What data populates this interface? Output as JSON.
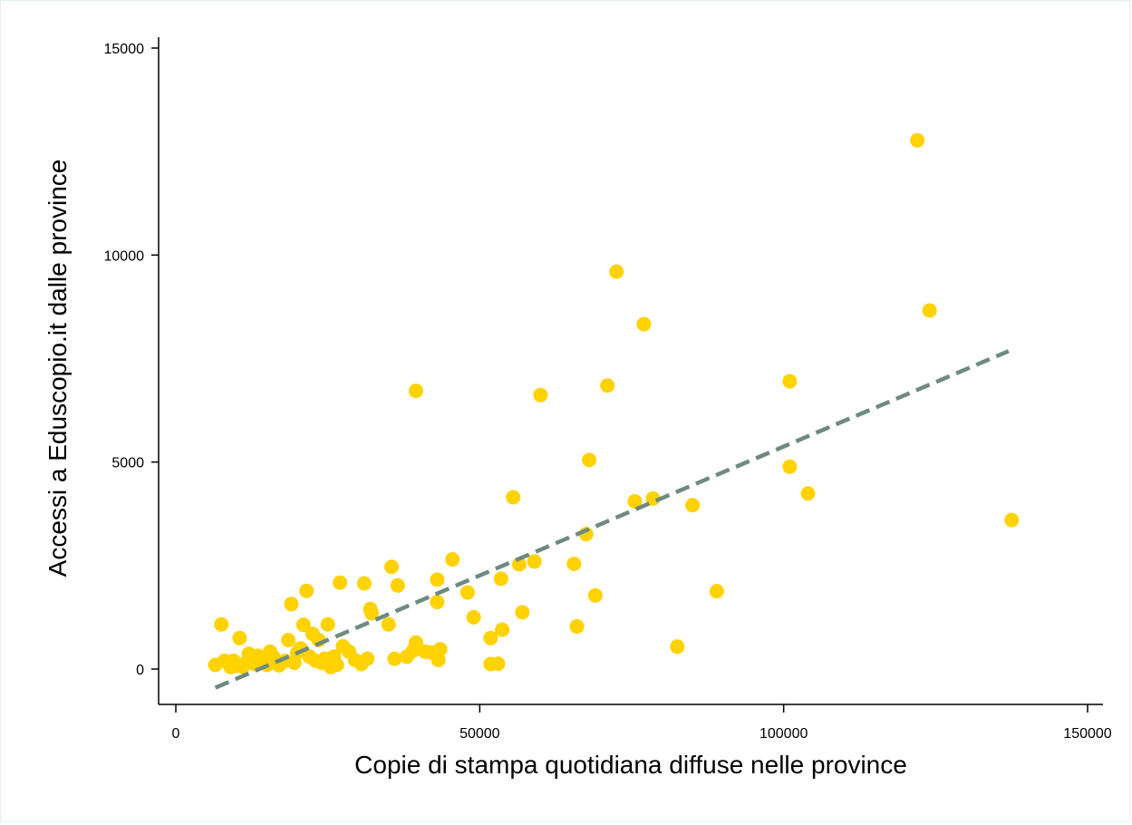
{
  "chart_data": {
    "type": "scatter",
    "xlabel": "Copie di stampa quotidiana diffuse nelle province",
    "ylabel": "Accessi a Eduscopio.it dalle province",
    "xlim": [
      0,
      150000
    ],
    "ylim": [
      0,
      15000
    ],
    "xticks": [
      "0",
      "50000",
      "100000",
      "150000"
    ],
    "yticks": [
      "0",
      "5000",
      "10000",
      "15000"
    ],
    "grid": false,
    "legend": "none",
    "marker_color": "#ffd200",
    "fit_color": "#6f8a80",
    "series": [
      {
        "values": [
          [
            6500,
            100
          ],
          [
            7500,
            1080
          ],
          [
            8000,
            200
          ],
          [
            9000,
            50
          ],
          [
            9500,
            200
          ],
          [
            10000,
            80
          ],
          [
            10500,
            750
          ],
          [
            11000,
            60
          ],
          [
            11500,
            150
          ],
          [
            12000,
            370
          ],
          [
            12500,
            250
          ],
          [
            13000,
            120
          ],
          [
            13500,
            320
          ],
          [
            14000,
            180
          ],
          [
            15000,
            100
          ],
          [
            15500,
            420
          ],
          [
            16000,
            300
          ],
          [
            17000,
            90
          ],
          [
            18000,
            200
          ],
          [
            18500,
            700
          ],
          [
            19000,
            1570
          ],
          [
            19500,
            150
          ],
          [
            20000,
            400
          ],
          [
            20500,
            500
          ],
          [
            21000,
            1070
          ],
          [
            21500,
            1890
          ],
          [
            22000,
            300
          ],
          [
            22500,
            850
          ],
          [
            23000,
            200
          ],
          [
            23500,
            700
          ],
          [
            24000,
            150
          ],
          [
            24500,
            250
          ],
          [
            25000,
            1080
          ],
          [
            25500,
            50
          ],
          [
            26000,
            300
          ],
          [
            26500,
            100
          ],
          [
            27000,
            2090
          ],
          [
            27500,
            550
          ],
          [
            28500,
            420
          ],
          [
            29500,
            220
          ],
          [
            30500,
            120
          ],
          [
            31000,
            2070
          ],
          [
            31500,
            250
          ],
          [
            32000,
            1450
          ],
          [
            32200,
            1350
          ],
          [
            35000,
            1080
          ],
          [
            35500,
            2470
          ],
          [
            36000,
            250
          ],
          [
            36500,
            2020
          ],
          [
            38000,
            300
          ],
          [
            39000,
            440
          ],
          [
            39500,
            6720
          ],
          [
            39500,
            640
          ],
          [
            41000,
            420
          ],
          [
            42000,
            400
          ],
          [
            43000,
            2160
          ],
          [
            43000,
            1620
          ],
          [
            43200,
            220
          ],
          [
            43500,
            480
          ],
          [
            45500,
            2650
          ],
          [
            48000,
            1850
          ],
          [
            49000,
            1250
          ],
          [
            51800,
            750
          ],
          [
            51800,
            120
          ],
          [
            53000,
            130
          ],
          [
            53500,
            2180
          ],
          [
            53700,
            950
          ],
          [
            55500,
            4150
          ],
          [
            56500,
            2530
          ],
          [
            57000,
            1370
          ],
          [
            59000,
            2600
          ],
          [
            60000,
            6620
          ],
          [
            65500,
            2540
          ],
          [
            66000,
            1030
          ],
          [
            67500,
            3260
          ],
          [
            68000,
            5050
          ],
          [
            69000,
            1780
          ],
          [
            71000,
            6850
          ],
          [
            72500,
            9600
          ],
          [
            75500,
            4050
          ],
          [
            77000,
            8330
          ],
          [
            78500,
            4120
          ],
          [
            82500,
            540
          ],
          [
            85000,
            3960
          ],
          [
            89000,
            1880
          ],
          [
            101000,
            6950
          ],
          [
            101000,
            4890
          ],
          [
            104000,
            4240
          ],
          [
            122000,
            12770
          ],
          [
            124000,
            8660
          ],
          [
            137500,
            3600
          ]
        ]
      }
    ],
    "fit_line": {
      "style": "dashed",
      "x": [
        6500,
        137000
      ],
      "y": [
        -450,
        7680
      ]
    }
  }
}
